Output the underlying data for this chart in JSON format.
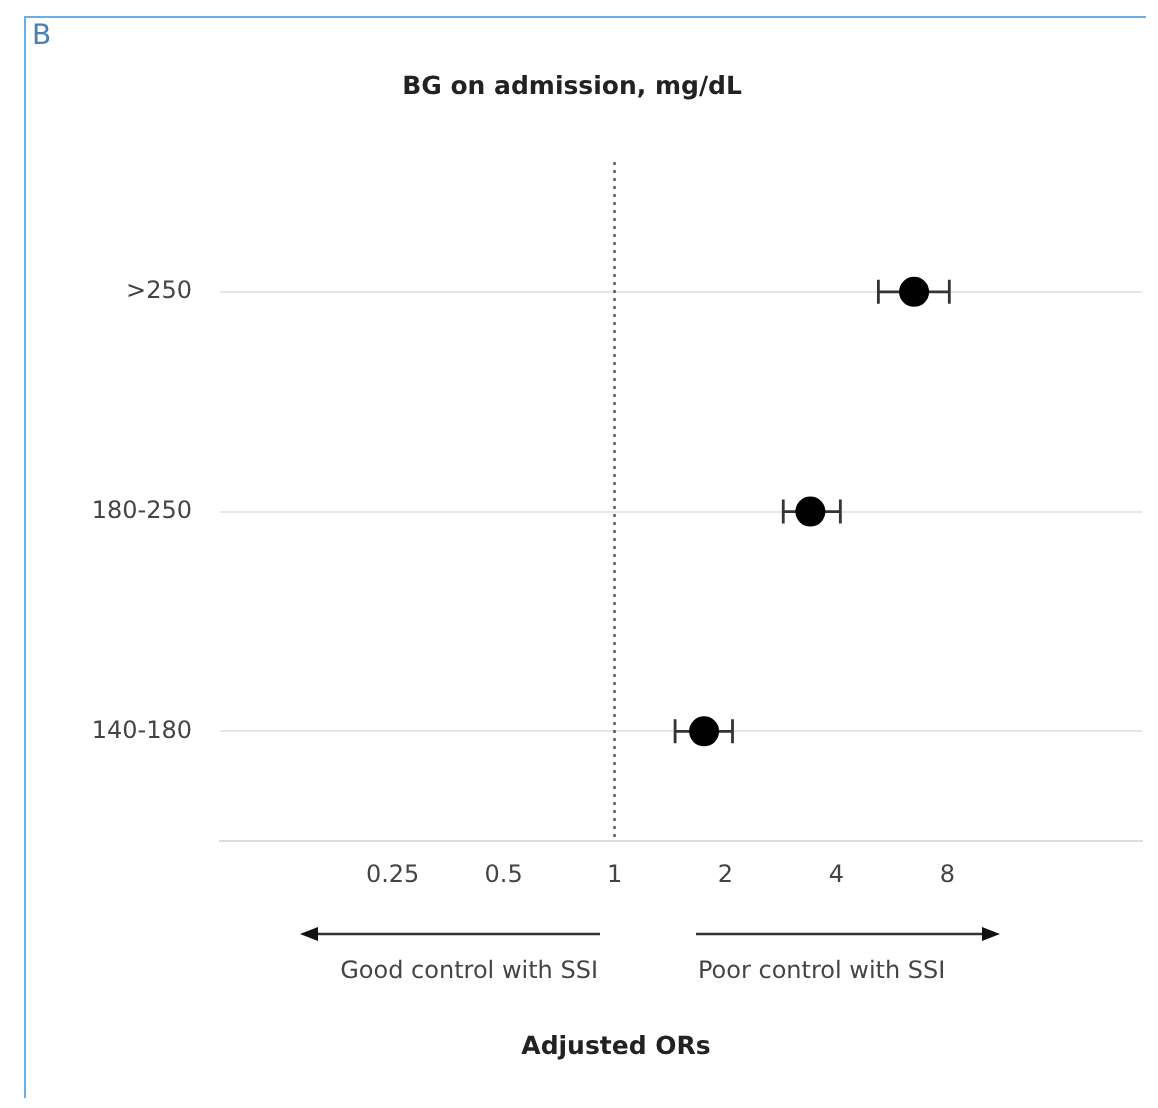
{
  "chart_data": {
    "type": "scatter",
    "title": "BG on admission, mg/dL",
    "categories": [
      ">250",
      "180-250",
      "140-180"
    ],
    "orientation": "horizontal",
    "series": [
      {
        "color": "#000000",
        "values": [
          6.5,
          3.4,
          1.75
        ],
        "errors": [
          [
            5.2,
            8.1
          ],
          [
            2.87,
            4.1
          ],
          [
            1.46,
            2.09
          ]
        ]
      }
    ],
    "log": "x",
    "xlim": [
      0.085,
      27
    ],
    "xticks": [
      0.25,
      0.5,
      1,
      2,
      4,
      8
    ],
    "ref_lines": [
      {
        "axis": "x",
        "value": 1,
        "line_style": "dotted",
        "color": "#555555"
      }
    ],
    "annotations": [
      "B",
      "Good control with SSI",
      "Poor control with SSI",
      "Adjusted ORs"
    ],
    "grid": "y",
    "legend": false,
    "marker": "circle"
  }
}
